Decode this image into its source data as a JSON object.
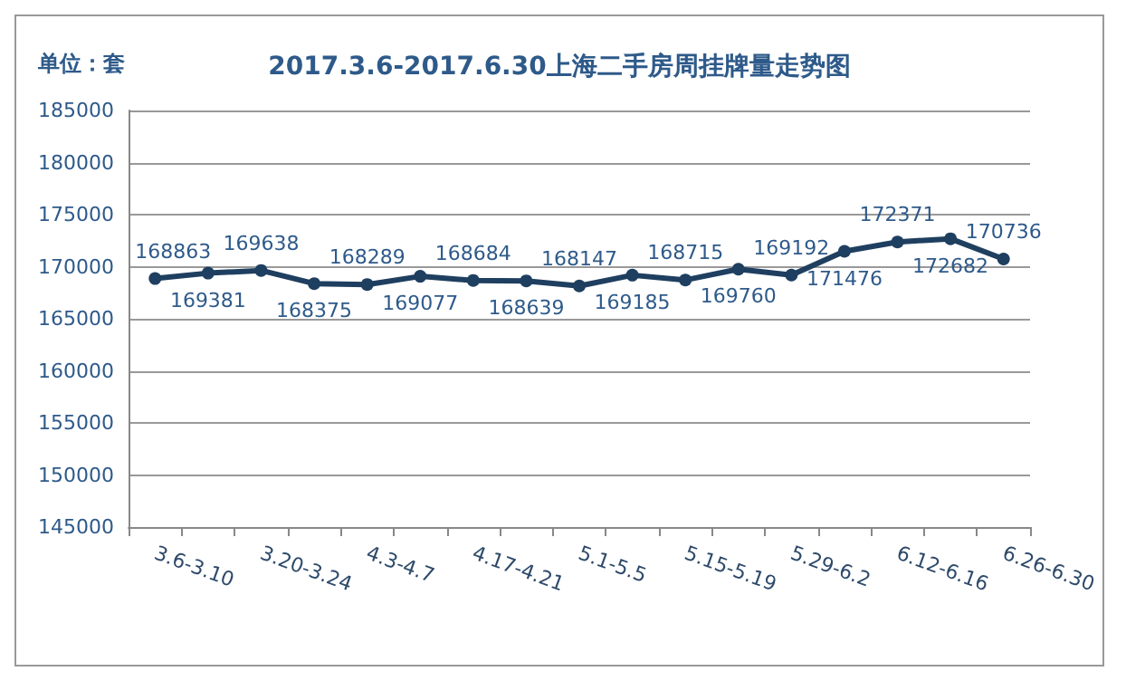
{
  "chart_data": {
    "type": "line",
    "title": "2017.3.6-2017.6.30上海二手房周挂牌量走势图",
    "annotations": [
      "单位：套"
    ],
    "categories": [
      "3.6-3.10",
      null,
      "3.20-3.24",
      null,
      "4.3-4.7",
      null,
      "4.17-4.21",
      null,
      "5.1-5.5",
      null,
      "5.15-5.19",
      null,
      "5.29-6.2",
      null,
      "6.12-6.16",
      null,
      "6.26-6.30"
    ],
    "series": [
      {
        "color": "#1f3f60",
        "values": [
          168863,
          169381,
          169638,
          168375,
          168289,
          169077,
          168684,
          168639,
          168147,
          169185,
          168715,
          169760,
          169192,
          171476,
          172371,
          172682,
          170736
        ]
      }
    ],
    "ylim": [
      145000,
      185000
    ],
    "yticks": [
      145000,
      150000,
      155000,
      160000,
      165000,
      170000,
      175000,
      180000,
      185000
    ],
    "grid": "y",
    "marker": "circle",
    "line_style": "solid",
    "data_labels": true
  }
}
